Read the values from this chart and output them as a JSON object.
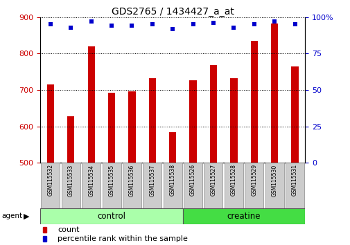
{
  "title": "GDS2765 / 1434427_a_at",
  "samples": [
    "GSM115532",
    "GSM115533",
    "GSM115534",
    "GSM115535",
    "GSM115536",
    "GSM115537",
    "GSM115538",
    "GSM115526",
    "GSM115527",
    "GSM115528",
    "GSM115529",
    "GSM115530",
    "GSM115531"
  ],
  "counts": [
    715,
    628,
    819,
    693,
    697,
    733,
    585,
    726,
    769,
    732,
    835,
    882,
    765
  ],
  "percentiles": [
    95,
    93,
    97,
    94,
    94,
    95,
    92,
    95,
    96,
    93,
    95,
    97,
    95
  ],
  "groups": [
    "control",
    "control",
    "control",
    "control",
    "control",
    "control",
    "control",
    "creatine",
    "creatine",
    "creatine",
    "creatine",
    "creatine",
    "creatine"
  ],
  "ctrl_count": 7,
  "creat_count": 6,
  "bar_color": "#CC0000",
  "dot_color": "#0000CC",
  "ylim_left": [
    500,
    900
  ],
  "ylim_right": [
    0,
    100
  ],
  "yticks_left": [
    500,
    600,
    700,
    800,
    900
  ],
  "yticks_right": [
    0,
    25,
    50,
    75,
    100
  ],
  "right_tick_labels": [
    "0",
    "25",
    "50",
    "75",
    "100%"
  ],
  "grid_color": "#000000",
  "tick_label_color_left": "#CC0000",
  "tick_label_color_right": "#0000CC",
  "legend_count_label": "count",
  "legend_pct_label": "percentile rank within the sample",
  "agent_label": "agent",
  "xlabel_group1": "control",
  "xlabel_group2": "creatine",
  "ctrl_color": "#AAFFAA",
  "creat_color": "#44DD44",
  "tickbox_color": "#CCCCCC",
  "tickbox_edge": "#999999"
}
